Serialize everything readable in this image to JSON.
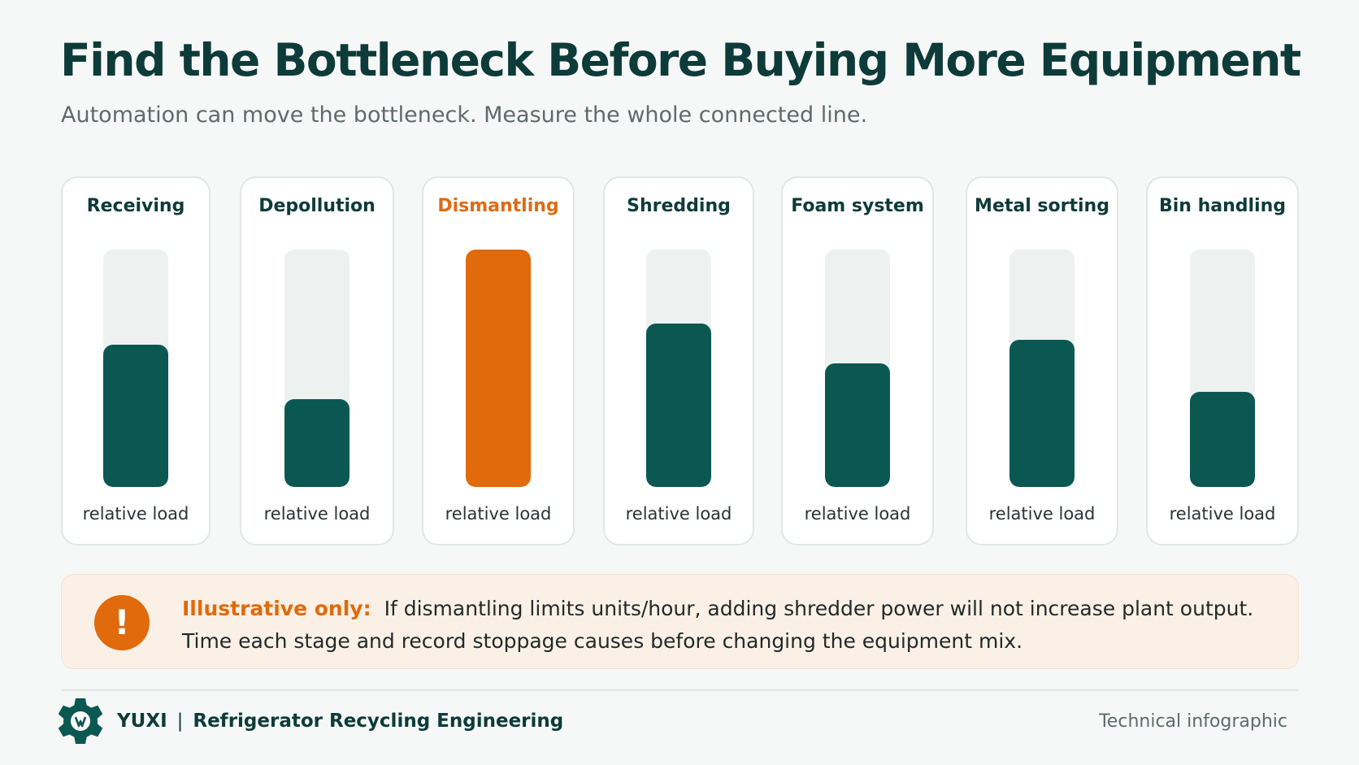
{
  "header": {
    "title": "Find the Bottleneck Before Buying More Equipment",
    "subtitle": "Automation can move the bottleneck. Measure the whole connected line."
  },
  "chart_data": {
    "type": "bar",
    "categories": [
      "Receiving",
      "Depollution",
      "Dismantling",
      "Shredding",
      "Foam system",
      "Metal sorting",
      "Bin handling"
    ],
    "values": [
      0.6,
      0.37,
      1.0,
      0.69,
      0.52,
      0.62,
      0.4
    ],
    "value_scale": "relative (0-1, bottleneck = 1)",
    "bar_caption": "relative load",
    "highlight": "Dismantling",
    "colors": {
      "normal": "#0b5852",
      "bottleneck": "#e06a0c",
      "track": "#edf2f0"
    }
  },
  "note": {
    "label": "Illustrative only:",
    "line1": "If dismantling limits units/hour, adding shredder power will not increase plant output.",
    "line2": "Time each stage and record stoppage causes before changing the equipment mix.",
    "icon": "exclamation-icon",
    "icon_text": "!"
  },
  "footer": {
    "brand": "YUXI",
    "separator": "|",
    "tagline": "Refrigerator Recycling Engineering",
    "right_text": "Technical infographic",
    "logo_icon": "gear-logo-icon"
  }
}
